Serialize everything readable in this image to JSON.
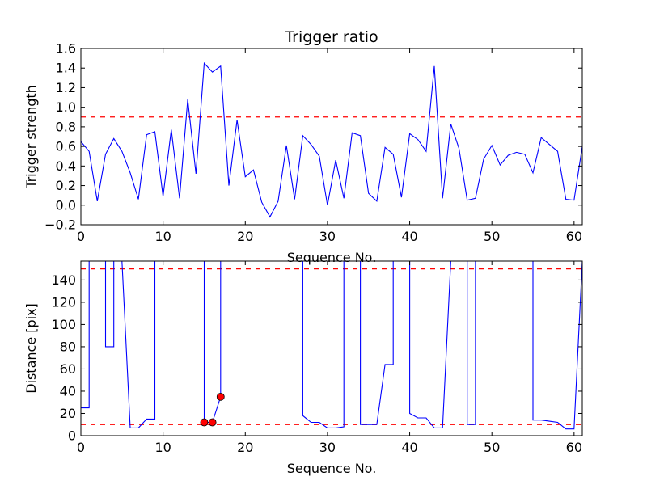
{
  "chart_data": [
    {
      "type": "line",
      "title": "Trigger ratio",
      "xlabel": "Sequence No.",
      "ylabel": "Trigger strength",
      "xlim": [
        0,
        61
      ],
      "ylim": [
        -0.2,
        1.6
      ],
      "xticks": [
        "0",
        "10",
        "20",
        "30",
        "40",
        "50",
        "60"
      ],
      "yticks": [
        "−0.2",
        "0.0",
        "0.2",
        "0.4",
        "0.6",
        "0.8",
        "1.0",
        "1.2",
        "1.4",
        "1.6"
      ],
      "grid": false,
      "legend": "none",
      "series": [
        {
          "color": "#0000ff",
          "x": [
            0,
            1,
            2,
            3,
            4,
            5,
            6,
            7,
            8,
            9,
            10,
            11,
            12,
            13,
            14,
            15,
            16,
            17,
            18,
            19,
            20,
            21,
            22,
            23,
            24,
            25,
            26,
            27,
            28,
            29,
            30,
            31,
            32,
            33,
            34,
            35,
            36,
            37,
            38,
            39,
            40,
            41,
            42,
            43,
            44,
            45,
            46,
            47,
            48,
            49,
            50,
            51,
            52,
            53,
            54,
            55,
            56,
            57,
            58,
            59,
            60,
            61
          ],
          "y": [
            0.65,
            0.55,
            0.04,
            0.52,
            0.68,
            0.55,
            0.33,
            0.06,
            0.72,
            0.75,
            0.09,
            0.77,
            0.07,
            1.08,
            0.32,
            1.45,
            1.36,
            1.42,
            0.2,
            0.87,
            0.29,
            0.36,
            0.03,
            -0.12,
            0.04,
            0.61,
            0.06,
            0.71,
            0.62,
            0.5,
            0.0,
            0.46,
            0.07,
            0.74,
            0.71,
            0.12,
            0.04,
            0.59,
            0.52,
            0.08,
            0.73,
            0.67,
            0.55,
            1.42,
            0.07,
            0.83,
            0.58,
            0.05,
            0.07,
            0.47,
            0.61,
            0.41,
            0.51,
            0.54,
            0.52,
            0.33,
            0.69,
            0.62,
            0.55,
            0.06,
            0.05,
            0.6
          ]
        }
      ],
      "threshold_lines": [
        {
          "y": 0.9,
          "color": "#ff0000",
          "style": "dashed"
        }
      ]
    },
    {
      "type": "line",
      "title": "",
      "xlabel": "Sequence No.",
      "ylabel": "Distance [pix]",
      "xlim": [
        0,
        61
      ],
      "ylim": [
        0,
        157
      ],
      "xticks": [
        "0",
        "10",
        "20",
        "30",
        "40",
        "50",
        "60"
      ],
      "yticks": [
        "0",
        "20",
        "40",
        "60",
        "80",
        "100",
        "120",
        "140"
      ],
      "grid": false,
      "legend": "none",
      "series": [
        {
          "color": "#0000ff",
          "x": [
            0,
            1,
            1,
            2,
            3,
            3,
            4,
            4,
            5,
            6,
            7,
            8,
            9,
            9,
            10,
            15,
            15,
            16,
            17,
            17,
            27,
            27,
            28,
            29,
            30,
            31,
            32,
            32,
            33,
            34,
            34,
            35,
            36,
            37,
            38,
            38,
            39,
            40,
            40,
            41,
            42,
            43,
            44,
            45,
            47,
            47,
            48,
            48,
            49,
            55,
            55,
            56,
            57,
            58,
            59,
            60,
            61
          ],
          "y": [
            25,
            25,
            157,
            157,
            157,
            80,
            80,
            157,
            157,
            7,
            7,
            15,
            15,
            157,
            157,
            157,
            12,
            12,
            35,
            157,
            157,
            18,
            12,
            12,
            7,
            7,
            8,
            157,
            157,
            157,
            10,
            10,
            10,
            64,
            64,
            157,
            157,
            157,
            20,
            16,
            16,
            7,
            7,
            157,
            157,
            10,
            10,
            157,
            157,
            157,
            14,
            14,
            13,
            12,
            6,
            6,
            157
          ]
        }
      ],
      "markers": [
        {
          "x": 15,
          "y": 12,
          "color": "#ff0000"
        },
        {
          "x": 16,
          "y": 12,
          "color": "#ff0000"
        },
        {
          "x": 17,
          "y": 35,
          "color": "#ff0000"
        }
      ],
      "threshold_lines": [
        {
          "y": 150,
          "color": "#ff0000",
          "style": "dashed"
        },
        {
          "y": 10,
          "color": "#ff0000",
          "style": "dashed"
        }
      ]
    }
  ]
}
